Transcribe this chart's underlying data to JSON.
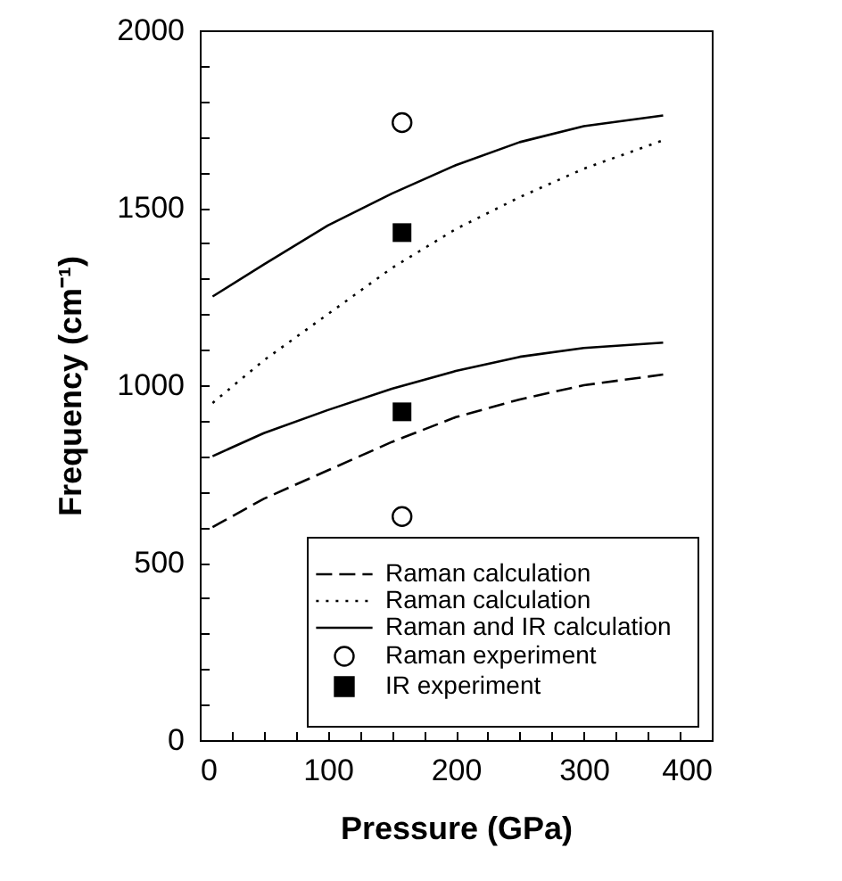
{
  "chart_data": {
    "type": "line",
    "xlabel": "Pressure (GPa)",
    "ylabel": "Frequency (cm⁻¹)",
    "xlim": [
      0,
      400
    ],
    "ylim": [
      0,
      2000
    ],
    "xticks": [
      0,
      {
        "value": 25,
        "label": null
      },
      {
        "value": 50,
        "label": null
      },
      {
        "value": 75,
        "label": null
      },
      100,
      {
        "value": 125,
        "label": null
      },
      {
        "value": 150,
        "label": null
      },
      {
        "value": 175,
        "label": null
      },
      200,
      {
        "value": 225,
        "label": null
      },
      {
        "value": 250,
        "label": null
      },
      {
        "value": 275,
        "label": null
      },
      300,
      {
        "value": 325,
        "label": null
      },
      {
        "value": 350,
        "label": null
      },
      {
        "value": 375,
        "label": null
      },
      400
    ],
    "yticks": [
      0,
      {
        "value": 100,
        "label": null
      },
      {
        "value": 200,
        "label": null
      },
      {
        "value": 300,
        "label": null
      },
      {
        "value": 400,
        "label": null
      },
      500,
      {
        "value": 600,
        "label": null
      },
      {
        "value": 700,
        "label": null
      },
      {
        "value": 800,
        "label": null
      },
      {
        "value": 900,
        "label": null
      },
      1000,
      {
        "value": 1100,
        "label": null
      },
      {
        "value": 1200,
        "label": null
      },
      {
        "value": 1300,
        "label": null
      },
      {
        "value": 1400,
        "label": null
      },
      1500,
      {
        "value": 1600,
        "label": null
      },
      {
        "value": 1700,
        "label": null
      },
      {
        "value": 1800,
        "label": null
      },
      {
        "value": 1900,
        "label": null
      },
      2000
    ],
    "grid": false,
    "legend": "bottom right",
    "series": [
      {
        "name": "Raman calculation",
        "type": "line",
        "line_style": "dashed",
        "color": "#000000",
        "x": [
          10,
          50,
          100,
          150,
          200,
          250,
          300,
          362
        ],
        "values": [
          600,
          680,
          760,
          840,
          910,
          960,
          1000,
          1030
        ]
      },
      {
        "name": "Raman calculation",
        "type": "line",
        "line_style": "dotted",
        "color": "#000000",
        "x": [
          10,
          50,
          100,
          150,
          200,
          250,
          300,
          362
        ],
        "values": [
          950,
          1070,
          1200,
          1330,
          1440,
          1530,
          1610,
          1690
        ]
      },
      {
        "name": "Raman and IR calculation",
        "type": "line",
        "line_style": "solid",
        "color": "#000000",
        "x": [
          10,
          50,
          100,
          150,
          200,
          250,
          300,
          362
        ],
        "values": [
          800,
          865,
          930,
          990,
          1040,
          1080,
          1105,
          1120
        ]
      },
      {
        "type": "line",
        "line_style": "solid",
        "color": "#000000",
        "x": [
          10,
          50,
          100,
          150,
          200,
          250,
          300,
          362
        ],
        "values": [
          1250,
          1340,
          1450,
          1540,
          1620,
          1685,
          1730,
          1760
        ]
      },
      {
        "name": "Raman experiment",
        "type": "scatter",
        "marker": "circle",
        "color": "#000000",
        "x": [
          158,
          158
        ],
        "values": [
          1740,
          630
        ]
      },
      {
        "name": "IR experiment",
        "type": "scatter",
        "marker": "square",
        "color": "#000000",
        "x": [
          158,
          158
        ],
        "values": [
          1430,
          925
        ]
      }
    ]
  }
}
